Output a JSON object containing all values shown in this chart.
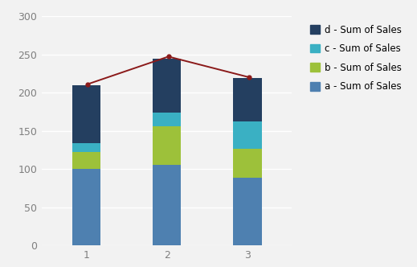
{
  "categories": [
    1,
    2,
    3
  ],
  "a": [
    100,
    106,
    89
  ],
  "b": [
    22,
    50,
    38
  ],
  "c": [
    12,
    18,
    35
  ],
  "d": [
    76,
    70,
    57
  ],
  "line_values": [
    211,
    247,
    220
  ],
  "bar_color_a": "#4e80b0",
  "bar_color_b": "#9dc13a",
  "bar_color_c": "#3ab0c3",
  "bar_color_d": "#243f60",
  "line_color": "#8b1a1a",
  "legend_labels": [
    "d - Sum of Sales",
    "c - Sum of Sales",
    "b - Sum of Sales",
    "a - Sum of Sales"
  ],
  "ylim": [
    0,
    300
  ],
  "yticks": [
    0,
    50,
    100,
    150,
    200,
    250,
    300
  ],
  "bar_width": 0.35,
  "background_color": "#f2f2f2",
  "plot_bg_color": "#f2f2f2",
  "grid_color": "#ffffff",
  "tick_color": "#7f7f7f",
  "legend_fontsize": 8.5,
  "tick_fontsize": 9
}
